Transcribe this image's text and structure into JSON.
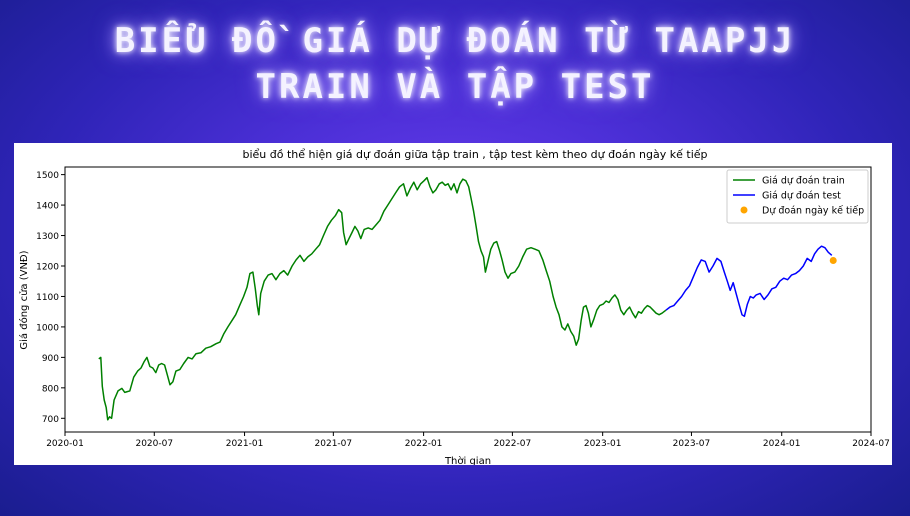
{
  "headline": {
    "line1": "BIỂU ĐỒ GIÁ DỰ ĐOÁN TỪ TAAPJJ",
    "line2": "TRAIN VÀ TẬP TEST"
  },
  "colors": {
    "train": "#008000",
    "test": "#0000ff",
    "forecast": "#ffa500"
  },
  "chart_data": {
    "type": "line",
    "title": "biểu đồ thể hiện giá dự đoán giữa tập train , tập test kèm theo dự đoán ngày kế tiếp",
    "xlabel": "Thời gian",
    "ylabel": "Giá đóng cửa (VNĐ)",
    "xlim": [
      "2020-01-01",
      "2024-07-01"
    ],
    "ylim": [
      655,
      1525
    ],
    "x_ticks": [
      "2020-01",
      "2020-07",
      "2021-01",
      "2021-07",
      "2022-01",
      "2022-07",
      "2023-01",
      "2023-07",
      "2024-01",
      "2024-07"
    ],
    "y_ticks": [
      700,
      800,
      900,
      1000,
      1100,
      1200,
      1300,
      1400,
      1500
    ],
    "legend_position": "top-right",
    "grid": false,
    "series": [
      {
        "name": "Giá dự đoán train",
        "kind": "line",
        "points": [
          [
            "2020-03-10",
            895
          ],
          [
            "2020-03-14",
            900
          ],
          [
            "2020-03-17",
            805
          ],
          [
            "2020-03-21",
            760
          ],
          [
            "2020-03-25",
            735
          ],
          [
            "2020-03-28",
            695
          ],
          [
            "2020-04-01",
            705
          ],
          [
            "2020-04-05",
            700
          ],
          [
            "2020-04-10",
            760
          ],
          [
            "2020-04-18",
            790
          ],
          [
            "2020-04-26",
            798
          ],
          [
            "2020-05-02",
            785
          ],
          [
            "2020-05-12",
            790
          ],
          [
            "2020-05-20",
            835
          ],
          [
            "2020-05-28",
            855
          ],
          [
            "2020-06-04",
            865
          ],
          [
            "2020-06-10",
            885
          ],
          [
            "2020-06-16",
            900
          ],
          [
            "2020-06-22",
            870
          ],
          [
            "2020-06-28",
            865
          ],
          [
            "2020-07-04",
            850
          ],
          [
            "2020-07-10",
            875
          ],
          [
            "2020-07-16",
            880
          ],
          [
            "2020-07-22",
            875
          ],
          [
            "2020-07-28",
            840
          ],
          [
            "2020-08-02",
            810
          ],
          [
            "2020-08-08",
            820
          ],
          [
            "2020-08-14",
            855
          ],
          [
            "2020-08-22",
            860
          ],
          [
            "2020-08-30",
            880
          ],
          [
            "2020-09-08",
            900
          ],
          [
            "2020-09-16",
            895
          ],
          [
            "2020-09-24",
            912
          ],
          [
            "2020-10-04",
            915
          ],
          [
            "2020-10-14",
            930
          ],
          [
            "2020-10-24",
            935
          ],
          [
            "2020-11-04",
            945
          ],
          [
            "2020-11-12",
            950
          ],
          [
            "2020-11-20",
            978
          ],
          [
            "2020-11-28",
            1000
          ],
          [
            "2020-12-06",
            1020
          ],
          [
            "2020-12-14",
            1040
          ],
          [
            "2020-12-22",
            1070
          ],
          [
            "2020-12-30",
            1100
          ],
          [
            "2021-01-06",
            1130
          ],
          [
            "2021-01-12",
            1175
          ],
          [
            "2021-01-18",
            1180
          ],
          [
            "2021-01-23",
            1125
          ],
          [
            "2021-01-27",
            1070
          ],
          [
            "2021-01-30",
            1040
          ],
          [
            "2021-02-03",
            1110
          ],
          [
            "2021-02-10",
            1150
          ],
          [
            "2021-02-18",
            1170
          ],
          [
            "2021-02-26",
            1175
          ],
          [
            "2021-03-06",
            1155
          ],
          [
            "2021-03-14",
            1175
          ],
          [
            "2021-03-22",
            1185
          ],
          [
            "2021-03-30",
            1170
          ],
          [
            "2021-04-08",
            1200
          ],
          [
            "2021-04-16",
            1220
          ],
          [
            "2021-04-24",
            1235
          ],
          [
            "2021-05-02",
            1215
          ],
          [
            "2021-05-10",
            1230
          ],
          [
            "2021-05-18",
            1240
          ],
          [
            "2021-05-26",
            1255
          ],
          [
            "2021-06-03",
            1270
          ],
          [
            "2021-06-11",
            1300
          ],
          [
            "2021-06-19",
            1330
          ],
          [
            "2021-06-27",
            1350
          ],
          [
            "2021-07-05",
            1365
          ],
          [
            "2021-07-12",
            1385
          ],
          [
            "2021-07-18",
            1375
          ],
          [
            "2021-07-22",
            1310
          ],
          [
            "2021-07-27",
            1270
          ],
          [
            "2021-08-02",
            1290
          ],
          [
            "2021-08-08",
            1310
          ],
          [
            "2021-08-14",
            1330
          ],
          [
            "2021-08-20",
            1315
          ],
          [
            "2021-08-26",
            1290
          ],
          [
            "2021-09-02",
            1320
          ],
          [
            "2021-09-10",
            1325
          ],
          [
            "2021-09-18",
            1320
          ],
          [
            "2021-09-26",
            1335
          ],
          [
            "2021-10-04",
            1350
          ],
          [
            "2021-10-12",
            1380
          ],
          [
            "2021-10-20",
            1400
          ],
          [
            "2021-10-28",
            1420
          ],
          [
            "2021-11-05",
            1440
          ],
          [
            "2021-11-13",
            1460
          ],
          [
            "2021-11-21",
            1470
          ],
          [
            "2021-11-28",
            1430
          ],
          [
            "2021-12-05",
            1455
          ],
          [
            "2021-12-12",
            1475
          ],
          [
            "2021-12-19",
            1450
          ],
          [
            "2021-12-26",
            1470
          ],
          [
            "2022-01-02",
            1480
          ],
          [
            "2022-01-08",
            1490
          ],
          [
            "2022-01-14",
            1460
          ],
          [
            "2022-01-20",
            1440
          ],
          [
            "2022-01-26",
            1450
          ],
          [
            "2022-02-02",
            1470
          ],
          [
            "2022-02-08",
            1475
          ],
          [
            "2022-02-14",
            1465
          ],
          [
            "2022-02-20",
            1470
          ],
          [
            "2022-02-26",
            1450
          ],
          [
            "2022-03-04",
            1470
          ],
          [
            "2022-03-10",
            1440
          ],
          [
            "2022-03-16",
            1470
          ],
          [
            "2022-03-22",
            1485
          ],
          [
            "2022-03-28",
            1480
          ],
          [
            "2022-04-03",
            1460
          ],
          [
            "2022-04-08",
            1420
          ],
          [
            "2022-04-13",
            1380
          ],
          [
            "2022-04-18",
            1330
          ],
          [
            "2022-04-23",
            1280
          ],
          [
            "2022-04-28",
            1250
          ],
          [
            "2022-05-03",
            1230
          ],
          [
            "2022-05-07",
            1180
          ],
          [
            "2022-05-12",
            1215
          ],
          [
            "2022-05-18",
            1255
          ],
          [
            "2022-05-24",
            1275
          ],
          [
            "2022-05-30",
            1280
          ],
          [
            "2022-06-05",
            1250
          ],
          [
            "2022-06-10",
            1220
          ],
          [
            "2022-06-16",
            1180
          ],
          [
            "2022-06-22",
            1160
          ],
          [
            "2022-06-28",
            1175
          ],
          [
            "2022-07-06",
            1180
          ],
          [
            "2022-07-14",
            1200
          ],
          [
            "2022-07-22",
            1230
          ],
          [
            "2022-07-30",
            1255
          ],
          [
            "2022-08-08",
            1260
          ],
          [
            "2022-08-16",
            1255
          ],
          [
            "2022-08-24",
            1250
          ],
          [
            "2022-09-01",
            1220
          ],
          [
            "2022-09-08",
            1185
          ],
          [
            "2022-09-15",
            1150
          ],
          [
            "2022-09-22",
            1100
          ],
          [
            "2022-09-28",
            1065
          ],
          [
            "2022-10-04",
            1040
          ],
          [
            "2022-10-10",
            1000
          ],
          [
            "2022-10-16",
            990
          ],
          [
            "2022-10-22",
            1010
          ],
          [
            "2022-10-28",
            985
          ],
          [
            "2022-11-03",
            970
          ],
          [
            "2022-11-08",
            940
          ],
          [
            "2022-11-13",
            960
          ],
          [
            "2022-11-18",
            1020
          ],
          [
            "2022-11-23",
            1065
          ],
          [
            "2022-11-28",
            1070
          ],
          [
            "2022-12-03",
            1045
          ],
          [
            "2022-12-08",
            1000
          ],
          [
            "2022-12-14",
            1025
          ],
          [
            "2022-12-20",
            1055
          ],
          [
            "2022-12-26",
            1070
          ],
          [
            "2023-01-02",
            1075
          ],
          [
            "2023-01-08",
            1085
          ],
          [
            "2023-01-14",
            1080
          ],
          [
            "2023-01-20",
            1095
          ],
          [
            "2023-01-26",
            1105
          ],
          [
            "2023-02-01",
            1090
          ],
          [
            "2023-02-07",
            1055
          ],
          [
            "2023-02-13",
            1040
          ],
          [
            "2023-02-19",
            1055
          ],
          [
            "2023-02-25",
            1065
          ],
          [
            "2023-03-03",
            1045
          ],
          [
            "2023-03-09",
            1030
          ],
          [
            "2023-03-15",
            1050
          ],
          [
            "2023-03-21",
            1045
          ],
          [
            "2023-03-27",
            1060
          ],
          [
            "2023-04-02",
            1070
          ],
          [
            "2023-04-08",
            1065
          ],
          [
            "2023-04-14",
            1055
          ],
          [
            "2023-04-20",
            1045
          ],
          [
            "2023-04-26",
            1040
          ],
          [
            "2023-05-02",
            1045
          ],
          [
            "2023-05-10",
            1055
          ]
        ]
      },
      {
        "name": "Giá dự đoán test",
        "kind": "line",
        "points": [
          [
            "2023-05-10",
            1055
          ],
          [
            "2023-05-18",
            1065
          ],
          [
            "2023-05-26",
            1070
          ],
          [
            "2023-06-03",
            1085
          ],
          [
            "2023-06-11",
            1100
          ],
          [
            "2023-06-19",
            1120
          ],
          [
            "2023-06-27",
            1135
          ],
          [
            "2023-07-05",
            1165
          ],
          [
            "2023-07-13",
            1195
          ],
          [
            "2023-07-21",
            1220
          ],
          [
            "2023-07-29",
            1215
          ],
          [
            "2023-08-06",
            1180
          ],
          [
            "2023-08-14",
            1200
          ],
          [
            "2023-08-22",
            1225
          ],
          [
            "2023-08-30",
            1215
          ],
          [
            "2023-09-06",
            1180
          ],
          [
            "2023-09-12",
            1150
          ],
          [
            "2023-09-18",
            1120
          ],
          [
            "2023-09-24",
            1145
          ],
          [
            "2023-09-30",
            1110
          ],
          [
            "2023-10-06",
            1075
          ],
          [
            "2023-10-12",
            1040
          ],
          [
            "2023-10-17",
            1035
          ],
          [
            "2023-10-23",
            1075
          ],
          [
            "2023-10-29",
            1100
          ],
          [
            "2023-11-04",
            1095
          ],
          [
            "2023-11-10",
            1105
          ],
          [
            "2023-11-18",
            1110
          ],
          [
            "2023-11-26",
            1090
          ],
          [
            "2023-12-04",
            1105
          ],
          [
            "2023-12-12",
            1125
          ],
          [
            "2023-12-20",
            1130
          ],
          [
            "2023-12-28",
            1150
          ],
          [
            "2024-01-05",
            1160
          ],
          [
            "2024-01-13",
            1155
          ],
          [
            "2024-01-21",
            1170
          ],
          [
            "2024-01-29",
            1175
          ],
          [
            "2024-02-06",
            1185
          ],
          [
            "2024-02-14",
            1200
          ],
          [
            "2024-02-22",
            1225
          ],
          [
            "2024-03-01",
            1215
          ],
          [
            "2024-03-08",
            1240
          ],
          [
            "2024-03-15",
            1255
          ],
          [
            "2024-03-22",
            1265
          ],
          [
            "2024-03-29",
            1260
          ],
          [
            "2024-04-05",
            1245
          ],
          [
            "2024-04-12",
            1235
          ]
        ]
      },
      {
        "name": "Dự đoán ngày kế tiếp",
        "kind": "scatter",
        "points": [
          [
            "2024-04-15",
            1218
          ]
        ]
      }
    ]
  }
}
